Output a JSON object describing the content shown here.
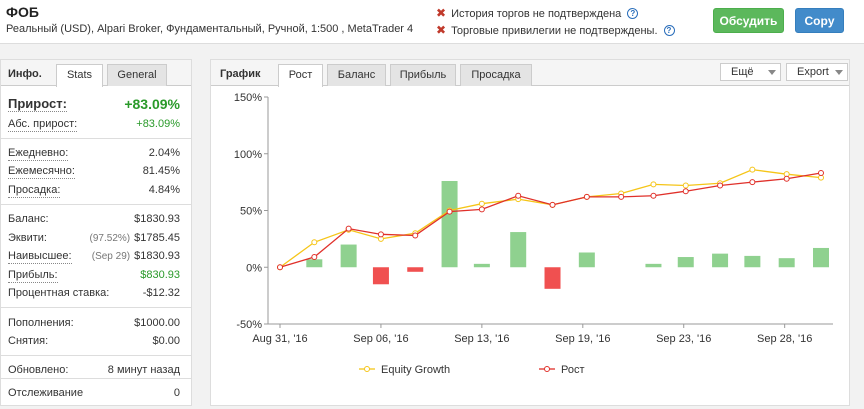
{
  "header": {
    "title": "ФОБ",
    "subtitle": "Реальный (USD), Alpari Broker, Фундаментальный, Ручной, 1:500 , MetaTrader 4",
    "warnings": [
      "История торгов не подтверждена",
      "Торговые привилегии не подтверждены."
    ],
    "discuss_label": "Обсудить",
    "copy_label": "Copy"
  },
  "left_panel": {
    "title": "Инфо.",
    "tabs": [
      "Stats",
      "General"
    ],
    "stats": {
      "gain": {
        "label": "Прирост:",
        "value": "+83.09%"
      },
      "abs_gain": {
        "label": "Абс. прирост:",
        "value": "+83.09%"
      },
      "daily": {
        "label": "Ежедневно:",
        "value": "2.04%"
      },
      "monthly": {
        "label": "Ежемесячно:",
        "value": "81.45%"
      },
      "drawdown": {
        "label": "Просадка:",
        "value": "4.84%"
      },
      "balance": {
        "label": "Баланс:",
        "value": "$1830.93"
      },
      "equity": {
        "label": "Эквити:",
        "note": "(97.52%)",
        "value": "$1785.45"
      },
      "highest": {
        "label": "Наивысшее:",
        "note": "(Sep 29)",
        "value": "$1830.93"
      },
      "profit": {
        "label": "Прибыль:",
        "value": "$830.93"
      },
      "interest": {
        "label": "Процентная ставка:",
        "value": "-$12.32"
      },
      "deposits": {
        "label": "Пополнения:",
        "value": "$1000.00"
      },
      "withdrawals": {
        "label": "Снятия:",
        "value": "$0.00"
      },
      "updated": {
        "label": "Обновлено:",
        "value": "8 минут назад"
      },
      "tracking": {
        "label": "Отслеживание",
        "value": "0"
      }
    }
  },
  "chart_panel": {
    "title": "График",
    "tabs": [
      "Рост",
      "Баланс",
      "Прибыль",
      "Просадка"
    ],
    "more_label": "Ещё",
    "export_label": "Export"
  },
  "colors": {
    "equity_line": "#f5c518",
    "growth_line": "#e0302a",
    "bar_positive": "#8fd18f",
    "bar_negative": "#f05050"
  },
  "chart_data": {
    "type": "line",
    "x_tick_labels": [
      "Aug 31, '16",
      "Sep 06, '16",
      "Sep 13, '16",
      "Sep 19, '16",
      "Sep 23, '16",
      "Sep 28, '16"
    ],
    "x_tick_index": [
      0,
      5,
      10,
      15,
      20,
      25
    ],
    "ylim": [
      -50,
      150
    ],
    "y_ticks": [
      -50,
      0,
      50,
      100,
      150
    ],
    "y_tick_labels": [
      "-50%",
      "0%",
      "50%",
      "100%",
      "150%"
    ],
    "series": [
      {
        "name": "Equity Growth",
        "color": "#f5c518",
        "values": [
          0,
          22,
          33,
          25,
          30,
          50,
          56,
          60,
          55,
          62,
          65,
          73,
          72,
          74,
          86,
          82,
          79
        ]
      },
      {
        "name": "Рост",
        "color": "#e0302a",
        "values": [
          0,
          9,
          34,
          29,
          28,
          49,
          51,
          63,
          55,
          62,
          62,
          63,
          67,
          72,
          75,
          78,
          83
        ]
      }
    ],
    "series_x_index": [
      0,
      1.7,
      3.4,
      5,
      6.7,
      8.4,
      10,
      11.8,
      13.5,
      15.2,
      16.9,
      18.5,
      20.1,
      21.8,
      23.4,
      25.1,
      26.8
    ],
    "bars": {
      "x_index": [
        1.7,
        3.4,
        5,
        6.7,
        8.4,
        10,
        11.8,
        13.5,
        15.2,
        18.5,
        20.1,
        21.8,
        23.4,
        25.1,
        26.8
      ],
      "values": [
        7,
        20,
        -15,
        -4,
        76,
        3,
        31,
        -19,
        13,
        3,
        9,
        12,
        10,
        8,
        17
      ]
    },
    "legend": "bottom"
  }
}
